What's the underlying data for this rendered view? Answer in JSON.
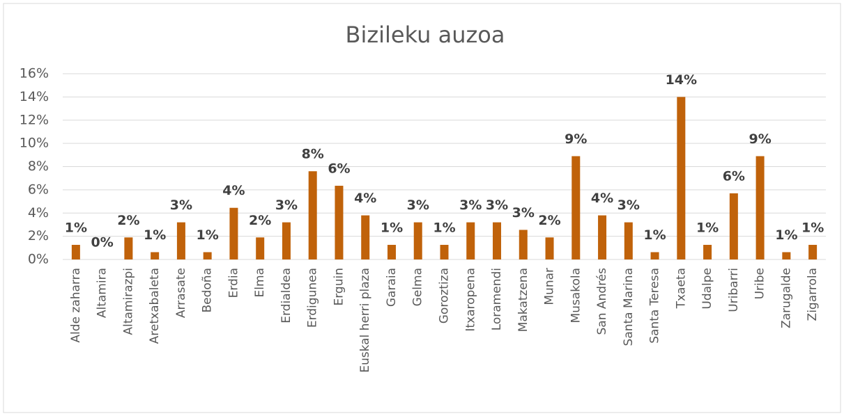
{
  "chart_data": {
    "type": "bar",
    "title": "Bizileku auzoa",
    "categories": [
      "Alde zaharra",
      "Altamira",
      "Altamirazpi",
      "Aretxabaleta",
      "Arrasate",
      "Bedoña",
      "Erdia",
      "Elma",
      "Erdialdea",
      "Erdigunea",
      "Erguin",
      "Euskal herri plaza",
      "Garaia",
      "Gelma",
      "Goroztiza",
      "Itxaropena",
      "Loramendi",
      "Makatzena",
      "Munar",
      "Musakola",
      "San Andrés",
      "Santa Marina",
      "Santa Teresa",
      "Txaeta",
      "Udalpe",
      "Uribarri",
      "Uribe",
      "Zarugalde",
      "Zigarrola"
    ],
    "values": [
      1.26,
      0,
      1.9,
      0.63,
      3.2,
      0.63,
      4.45,
      1.9,
      3.2,
      7.6,
      6.35,
      3.8,
      1.26,
      3.2,
      1.26,
      3.2,
      3.2,
      2.55,
      1.9,
      8.9,
      3.8,
      3.2,
      0.63,
      14.0,
      1.26,
      5.7,
      8.9,
      0.63,
      1.26
    ],
    "value_labels": [
      "1%",
      "0%",
      "2%",
      "1%",
      "3%",
      "1%",
      "4%",
      "2%",
      "3%",
      "8%",
      "6%",
      "4%",
      "1%",
      "3%",
      "1%",
      "3%",
      "3%",
      "3%",
      "2%",
      "9%",
      "4%",
      "3%",
      "1%",
      "14%",
      "1%",
      "6%",
      "9%",
      "1%",
      "1%"
    ],
    "color": "#c0620a",
    "ylim": [
      0,
      16
    ],
    "yticks": [
      {
        "value": 0,
        "label": "0%"
      },
      {
        "value": 2,
        "label": "2%"
      },
      {
        "value": 4,
        "label": "4%"
      },
      {
        "value": 6,
        "label": "6%"
      },
      {
        "value": 8,
        "label": "8%"
      },
      {
        "value": 10,
        "label": "10%"
      },
      {
        "value": 12,
        "label": "12%"
      },
      {
        "value": 14,
        "label": "14%"
      },
      {
        "value": 16,
        "label": "16%"
      }
    ],
    "grid": true
  }
}
